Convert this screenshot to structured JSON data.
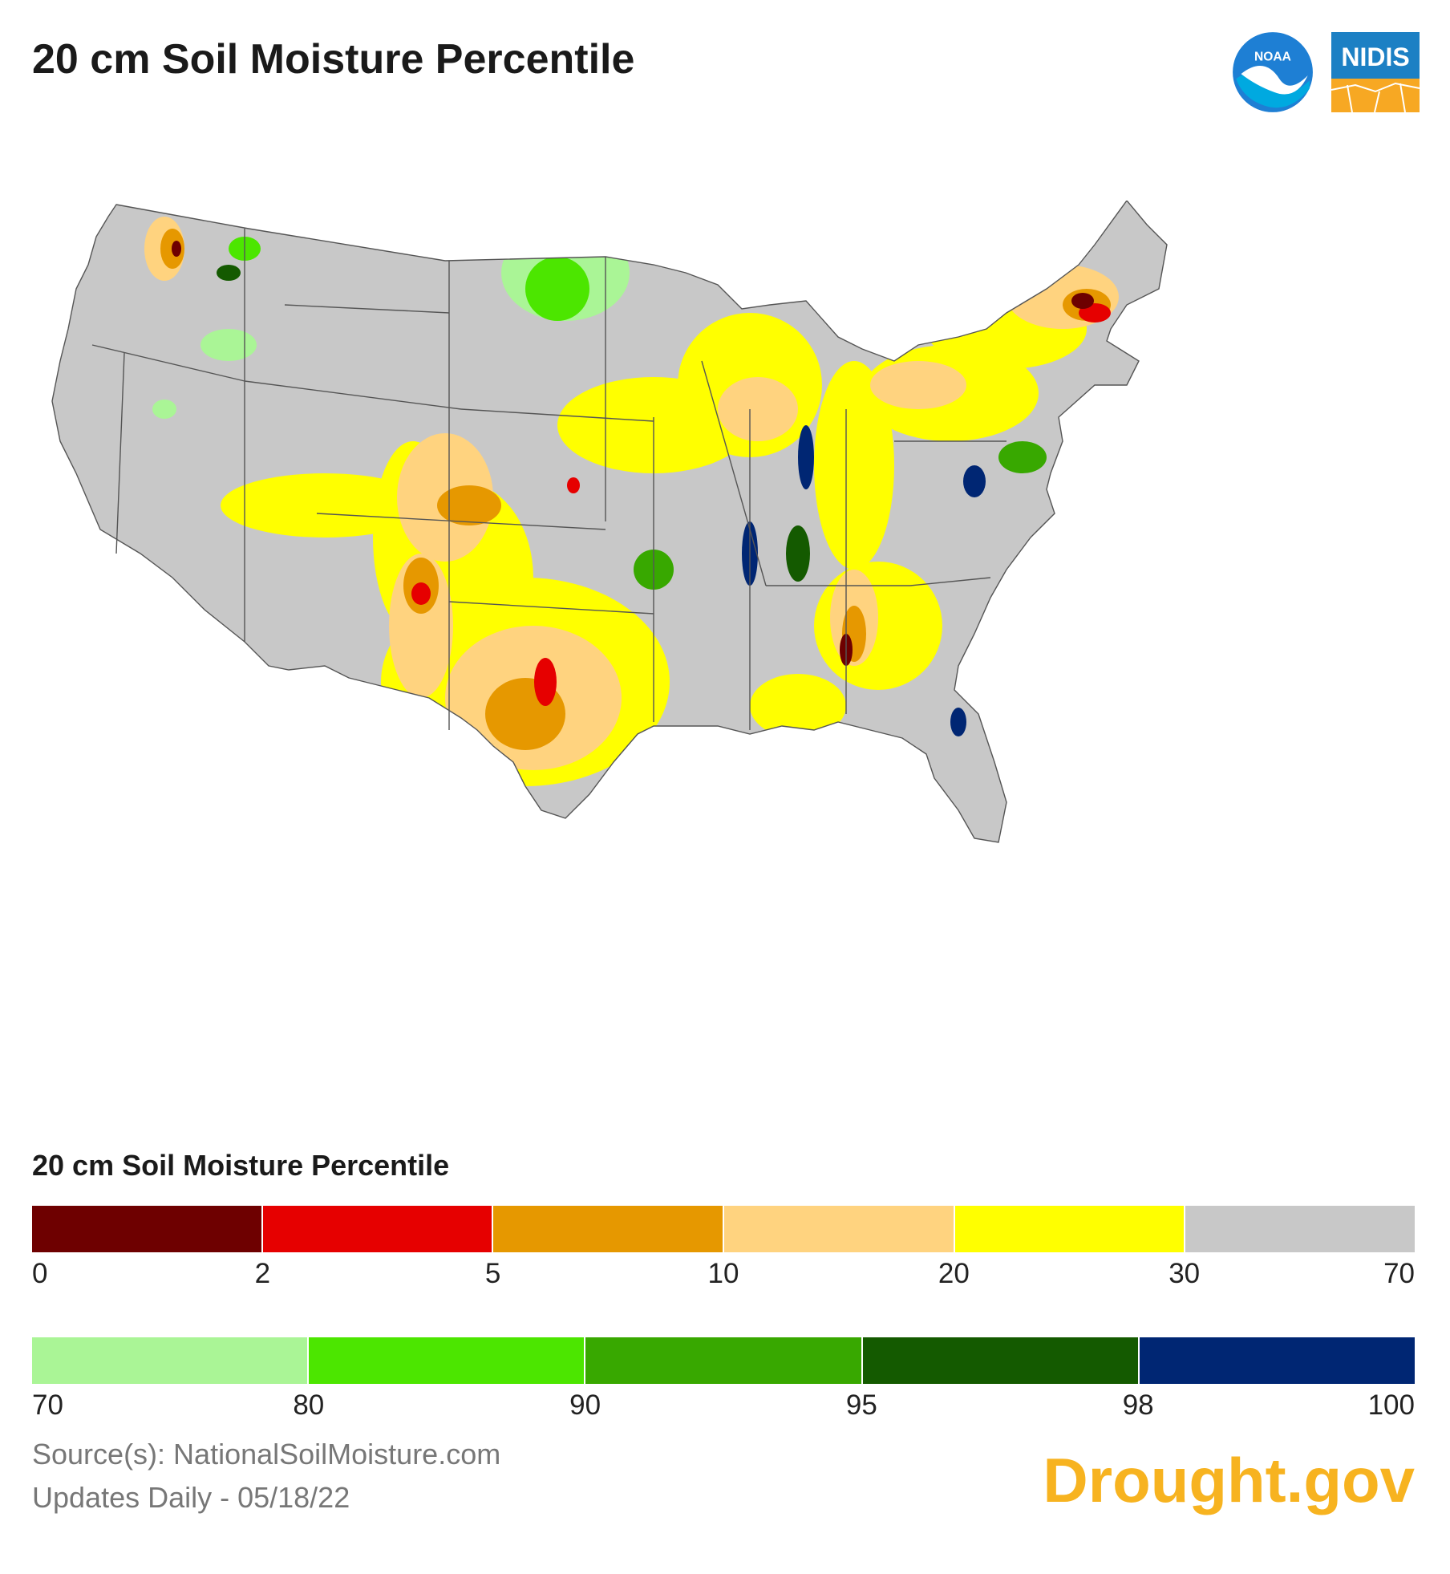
{
  "header": {
    "title": "20 cm Soil Moisture Percentile",
    "logos": [
      {
        "name": "noaa-logo",
        "text": "NOAA",
        "colors": [
          "#1e7fd4",
          "#00a9e0",
          "#ffffff"
        ]
      },
      {
        "name": "nidis-logo",
        "text": "NIDIS",
        "colors": [
          "#1c80c4",
          "#f7a823"
        ]
      }
    ]
  },
  "map": {
    "region": "Contiguous United States",
    "background_color": "#c8c8c8",
    "border_color": "#555555"
  },
  "legend": {
    "title": "20 cm Soil Moisture Percentile",
    "dry_scale": {
      "colors": [
        "#6e0000",
        "#e60000",
        "#e69800",
        "#ffd37f",
        "#ffff00",
        "#c8c8c8"
      ],
      "ticks": [
        "0",
        "2",
        "5",
        "10",
        "20",
        "30",
        "70"
      ]
    },
    "wet_scale": {
      "colors": [
        "#aaf596",
        "#4ce600",
        "#38a800",
        "#145a00",
        "#002673"
      ],
      "ticks": [
        "70",
        "80",
        "90",
        "95",
        "98",
        "100"
      ]
    }
  },
  "footer": {
    "source": "Source(s): NationalSoilMoisture.com",
    "updates": "Updates Daily - 05/18/22",
    "brand": "Drought.gov"
  }
}
